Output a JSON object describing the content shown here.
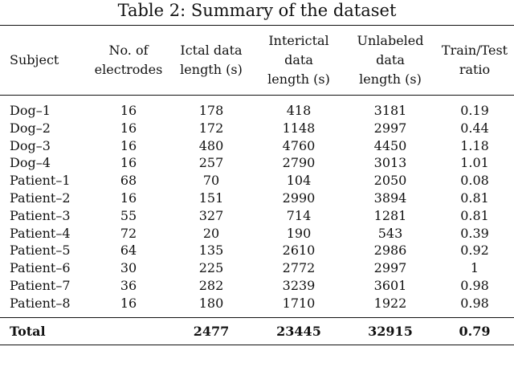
{
  "caption": "Table 2: Summary of the dataset",
  "headers": [
    [
      "Subject"
    ],
    [
      "No. of",
      "electrodes"
    ],
    [
      "Ictal data",
      "length (s)"
    ],
    [
      "Interictal",
      "data",
      "length (s)"
    ],
    [
      "Unlabeled",
      "data",
      "length (s)"
    ],
    [
      "Train/Test",
      "ratio"
    ]
  ],
  "rows": [
    [
      "Dog–1",
      "16",
      "178",
      "418",
      "3181",
      "0.19"
    ],
    [
      "Dog–2",
      "16",
      "172",
      "1148",
      "2997",
      "0.44"
    ],
    [
      "Dog–3",
      "16",
      "480",
      "4760",
      "4450",
      "1.18"
    ],
    [
      "Dog–4",
      "16",
      "257",
      "2790",
      "3013",
      "1.01"
    ],
    [
      "Patient–1",
      "68",
      "70",
      "104",
      "2050",
      "0.08"
    ],
    [
      "Patient–2",
      "16",
      "151",
      "2990",
      "3894",
      "0.81"
    ],
    [
      "Patient–3",
      "55",
      "327",
      "714",
      "1281",
      "0.81"
    ],
    [
      "Patient–4",
      "72",
      "20",
      "190",
      "543",
      "0.39"
    ],
    [
      "Patient–5",
      "64",
      "135",
      "2610",
      "2986",
      "0.92"
    ],
    [
      "Patient–6",
      "30",
      "225",
      "2772",
      "2997",
      "1"
    ],
    [
      "Patient–7",
      "36",
      "282",
      "3239",
      "3601",
      "0.98"
    ],
    [
      "Patient–8",
      "16",
      "180",
      "1710",
      "1922",
      "0.98"
    ]
  ],
  "total": [
    "Total",
    "",
    "2477",
    "23445",
    "32915",
    "0.79"
  ]
}
